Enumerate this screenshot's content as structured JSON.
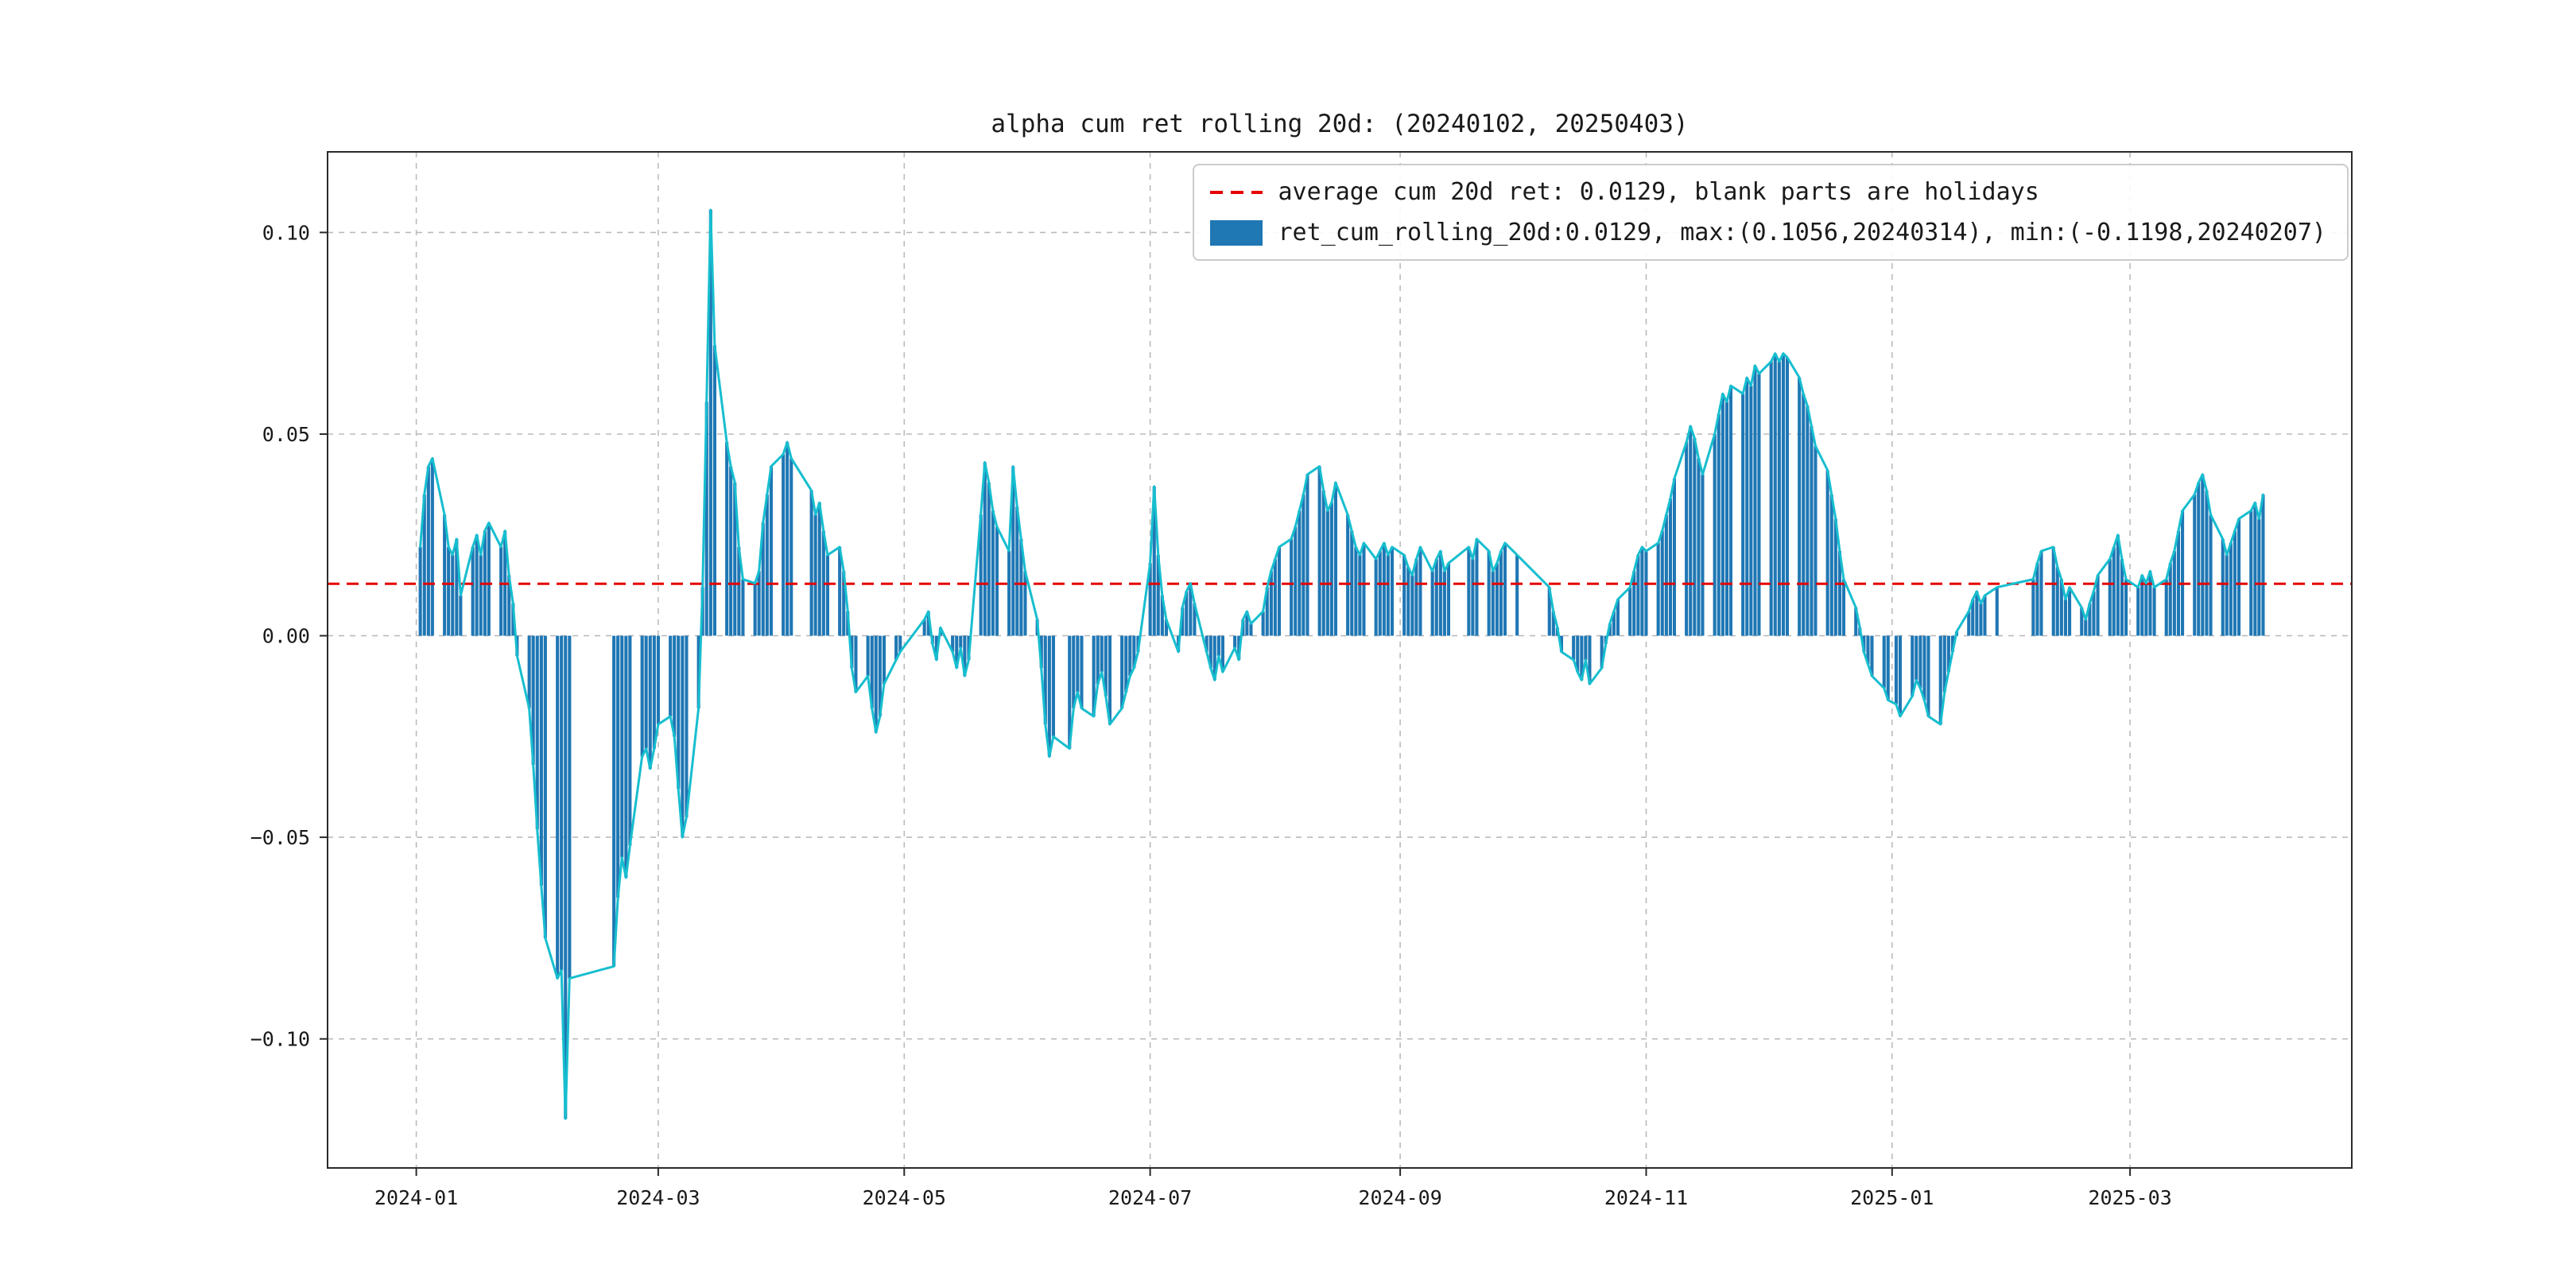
{
  "title": "alpha cum ret rolling 20d: (20240102, 20250403)",
  "legend": {
    "avg_line_label": "average cum 20d ret: 0.0129, blank parts are holidays",
    "series_label": "ret_cum_rolling_20d:0.0129, max:(0.1056,20240314), min:(-0.1198,20240207)"
  },
  "chart_data": {
    "type": "bar",
    "overlay_line": true,
    "title": "alpha cum ret rolling 20d: (20240102, 20250403)",
    "xlabel": "",
    "ylabel": "",
    "average": 0.0129,
    "max": {
      "value": 0.1056,
      "date": "20240314"
    },
    "min": {
      "value": -0.1198,
      "date": "20240207"
    },
    "ylim": [
      -0.132,
      0.12
    ],
    "xlim": [
      "2023-12-10",
      "2025-04-25"
    ],
    "grid": true,
    "legend_position": "upper right",
    "colors": {
      "bar": "#1f77b4",
      "line": "#17becf",
      "average_line": "#e60000",
      "grid": "#bbbbbb",
      "spine": "#2b2b2b",
      "text": "#1a1a1a"
    },
    "yticks": [
      {
        "v": 0.1,
        "label": "0.10"
      },
      {
        "v": 0.05,
        "label": "0.05"
      },
      {
        "v": 0.0,
        "label": "0.00"
      },
      {
        "v": -0.05,
        "label": "−0.05"
      },
      {
        "v": -0.1,
        "label": "−0.10"
      }
    ],
    "xticks": [
      {
        "date": "2024-01-01",
        "label": "2024-01"
      },
      {
        "date": "2024-03-01",
        "label": "2024-03"
      },
      {
        "date": "2024-05-01",
        "label": "2024-05"
      },
      {
        "date": "2024-07-01",
        "label": "2024-07"
      },
      {
        "date": "2024-09-01",
        "label": "2024-09"
      },
      {
        "date": "2024-11-01",
        "label": "2024-11"
      },
      {
        "date": "2025-01-01",
        "label": "2025-01"
      },
      {
        "date": "2025-03-01",
        "label": "2025-03"
      }
    ],
    "start": "2024-01-02",
    "end": "2025-04-03",
    "holidays": [
      [
        "2024-02-09",
        "2024-02-16"
      ],
      [
        "2024-04-04",
        "2024-04-05"
      ],
      [
        "2024-05-01",
        "2024-05-03"
      ],
      [
        "2024-06-10",
        "2024-06-10"
      ],
      [
        "2024-09-16",
        "2024-09-17"
      ],
      [
        "2024-10-01",
        "2024-10-07"
      ],
      [
        "2025-01-01",
        "2025-01-01"
      ],
      [
        "2025-01-28",
        "2025-02-04"
      ]
    ],
    "values": [
      0.022,
      0.035,
      0.042,
      0.044,
      0.03,
      0.022,
      0.02,
      0.024,
      0.01,
      0.022,
      0.025,
      0.02,
      0.026,
      0.028,
      0.022,
      0.026,
      0.015,
      0.008,
      -0.005,
      -0.018,
      -0.032,
      -0.048,
      -0.062,
      -0.075,
      -0.085,
      -0.083,
      -0.1198,
      -0.085,
      -0.082,
      -0.065,
      -0.055,
      -0.06,
      -0.052,
      -0.03,
      -0.028,
      -0.033,
      -0.028,
      -0.022,
      -0.02,
      -0.025,
      -0.038,
      -0.05,
      -0.045,
      -0.018,
      0.012,
      0.058,
      0.1056,
      0.072,
      0.048,
      0.042,
      0.038,
      0.022,
      0.014,
      0.013,
      0.016,
      0.028,
      0.035,
      0.042,
      0.045,
      0.048,
      0.044,
      0.036,
      0.03,
      0.033,
      0.026,
      0.02,
      0.022,
      0.016,
      0.006,
      -0.008,
      -0.014,
      -0.01,
      -0.018,
      -0.024,
      -0.02,
      -0.012,
      -0.006,
      -0.004,
      0.004,
      0.006,
      -0.002,
      -0.006,
      0.002,
      -0.004,
      -0.008,
      -0.003,
      -0.01,
      -0.006,
      0.03,
      0.043,
      0.038,
      0.031,
      0.027,
      0.021,
      0.042,
      0.032,
      0.024,
      0.016,
      0.004,
      -0.008,
      -0.022,
      -0.03,
      -0.025,
      -0.028,
      -0.018,
      -0.014,
      -0.018,
      -0.02,
      -0.012,
      -0.009,
      -0.015,
      -0.022,
      -0.018,
      -0.014,
      -0.01,
      -0.008,
      -0.004,
      0.018,
      0.037,
      0.02,
      0.01,
      0.004,
      -0.004,
      0.007,
      0.011,
      0.013,
      0.008,
      -0.004,
      -0.008,
      -0.011,
      -0.005,
      -0.009,
      -0.003,
      -0.006,
      0.004,
      0.006,
      0.003,
      0.006,
      0.012,
      0.016,
      0.019,
      0.022,
      0.024,
      0.027,
      0.031,
      0.035,
      0.04,
      0.042,
      0.036,
      0.031,
      0.033,
      0.038,
      0.03,
      0.026,
      0.022,
      0.02,
      0.023,
      0.019,
      0.021,
      0.023,
      0.02,
      0.022,
      0.02,
      0.017,
      0.015,
      0.019,
      0.022,
      0.016,
      0.019,
      0.021,
      0.016,
      0.018,
      0.022,
      0.019,
      0.024,
      0.021,
      0.016,
      0.018,
      0.021,
      0.023,
      0.02,
      0.012,
      0.006,
      0.002,
      -0.004,
      -0.006,
      -0.009,
      -0.011,
      -0.006,
      -0.012,
      -0.008,
      -0.002,
      0.003,
      0.006,
      0.009,
      0.012,
      0.016,
      0.02,
      0.022,
      0.021,
      0.023,
      0.026,
      0.03,
      0.034,
      0.039,
      0.048,
      0.052,
      0.049,
      0.044,
      0.04,
      0.05,
      0.055,
      0.06,
      0.058,
      0.062,
      0.06,
      0.064,
      0.062,
      0.067,
      0.065,
      0.068,
      0.07,
      0.068,
      0.07,
      0.069,
      0.064,
      0.06,
      0.057,
      0.052,
      0.047,
      0.041,
      0.035,
      0.029,
      0.021,
      0.014,
      0.007,
      0.002,
      -0.004,
      -0.007,
      -0.01,
      -0.013,
      -0.016,
      -0.017,
      -0.02,
      -0.015,
      -0.011,
      -0.013,
      -0.016,
      -0.02,
      -0.022,
      -0.014,
      -0.009,
      -0.004,
      0.001,
      0.006,
      0.009,
      0.011,
      0.008,
      0.01,
      0.012,
      0.014,
      0.018,
      0.021,
      0.022,
      0.017,
      0.014,
      0.009,
      0.012,
      0.007,
      0.004,
      0.008,
      0.011,
      0.015,
      0.019,
      0.022,
      0.025,
      0.019,
      0.014,
      0.012,
      0.015,
      0.013,
      0.016,
      0.012,
      0.014,
      0.018,
      0.021,
      0.026,
      0.031,
      0.035,
      0.038,
      0.04,
      0.036,
      0.03,
      0.024,
      0.02,
      0.023,
      0.026,
      0.029,
      0.031,
      0.033,
      0.029,
      0.035
    ]
  }
}
